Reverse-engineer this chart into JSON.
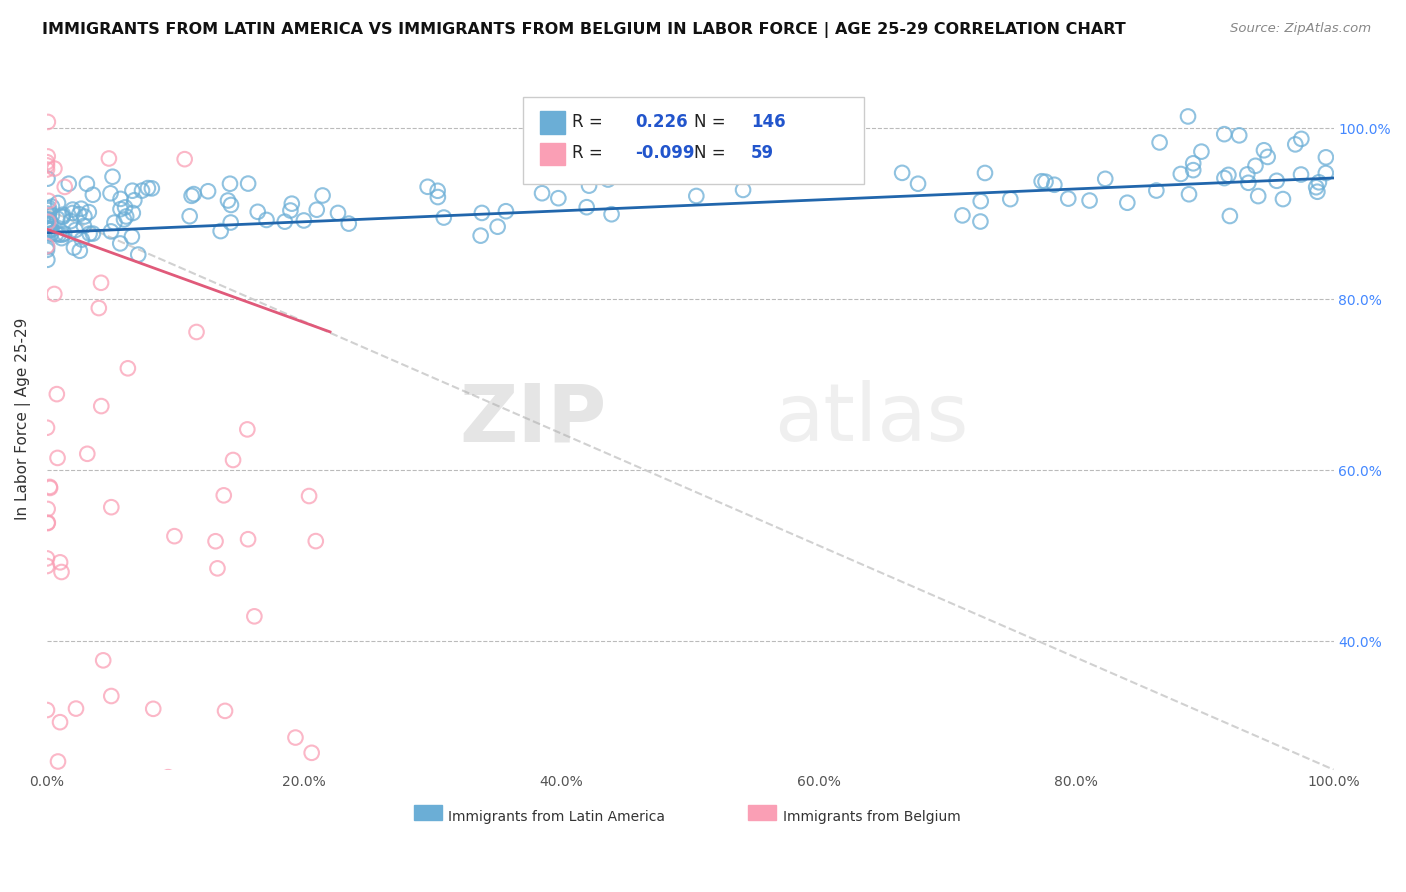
{
  "title": "IMMIGRANTS FROM LATIN AMERICA VS IMMIGRANTS FROM BELGIUM IN LABOR FORCE | AGE 25-29 CORRELATION CHART",
  "source": "Source: ZipAtlas.com",
  "ylabel": "In Labor Force | Age 25-29",
  "xlim": [
    0.0,
    1.0
  ],
  "ylim": [
    0.25,
    1.07
  ],
  "blue_R": 0.226,
  "blue_N": 146,
  "pink_R": -0.099,
  "pink_N": 59,
  "blue_color": "#6baed6",
  "pink_color": "#fa9fb5",
  "blue_line_color": "#2166ac",
  "pink_line_color": "#e05a7a",
  "trend_line_color": "#cccccc",
  "background_color": "#ffffff",
  "grid_color": "#bbbbbb",
  "watermark_zip": "ZIP",
  "watermark_atlas": "atlas",
  "legend_label_blue": "Immigrants from Latin America",
  "legend_label_pink": "Immigrants from Belgium",
  "blue_trend_y_start": 0.878,
  "blue_trend_y_end": 0.942,
  "pink_trend_y_start": 0.882,
  "pink_trend_y_end": 0.762,
  "pink_trend_x_end": 0.22,
  "gray_trend_y_start": 0.905,
  "gray_trend_y_end": 0.25
}
